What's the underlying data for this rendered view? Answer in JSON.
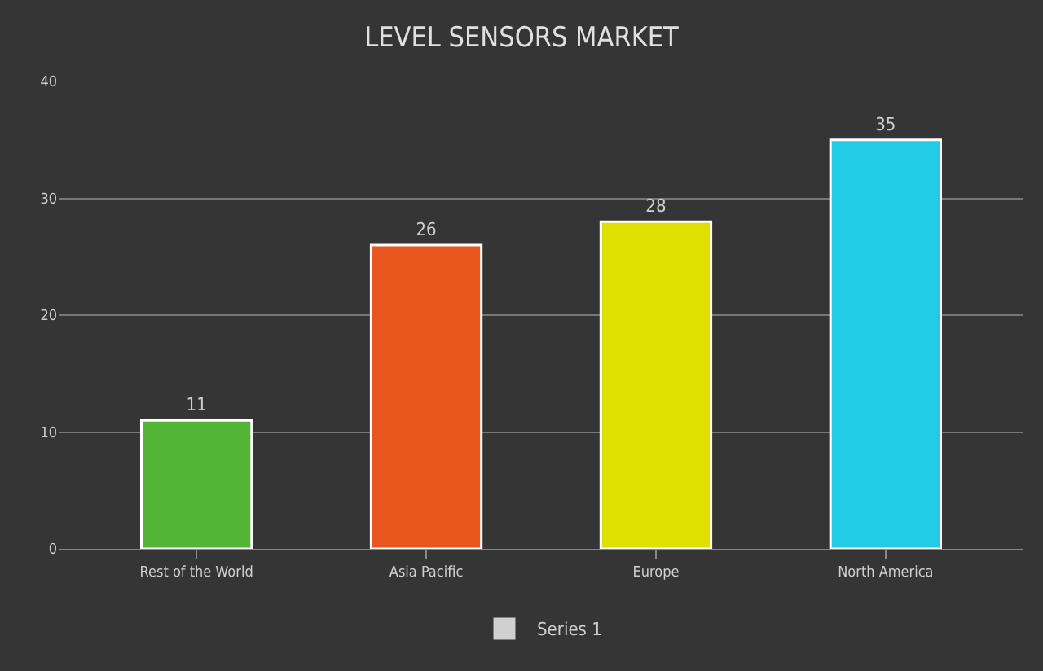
{
  "chart_data": {
    "type": "bar",
    "title": "LEVEL SENSORS MARKET",
    "categories": [
      "Rest of the World",
      "Asia Pacific",
      "Europe",
      "North America"
    ],
    "series": [
      {
        "name": "Series 1",
        "color": "#d0d0d0",
        "colors": [
          "#52b535",
          "#e8561e",
          "#dfe000",
          "#22cbe6"
        ],
        "values": [
          11,
          26,
          28,
          35
        ]
      }
    ],
    "ylim": [
      0,
      40
    ],
    "yticks": [
      0,
      10,
      20,
      30,
      40
    ],
    "grid": "y",
    "legend": "bottom",
    "data_labels": true
  }
}
